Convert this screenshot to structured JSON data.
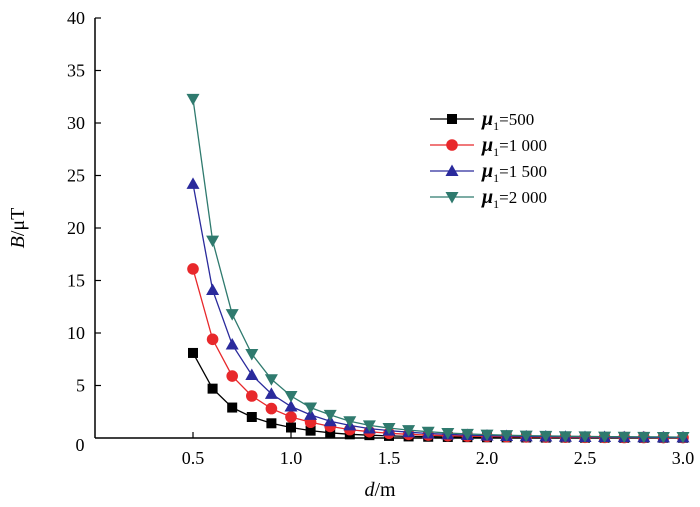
{
  "chart_data": {
    "type": "line",
    "xlabel_var": "d",
    "xlabel_unit": "/m",
    "ylabel_var": "B",
    "ylabel_unit": "/μT",
    "xlim": [
      0,
      3.0
    ],
    "ylim": [
      0,
      40
    ],
    "xticks": [
      "0.5",
      "1.0",
      "1.5",
      "2.0",
      "2.5",
      "3.0"
    ],
    "yticks": [
      "0",
      "5",
      "10",
      "15",
      "20",
      "25",
      "30",
      "35",
      "40"
    ],
    "origin_label": "0",
    "grid": false,
    "legend_position": "top-right",
    "x": [
      0.5,
      0.6,
      0.7,
      0.8,
      0.9,
      1.0,
      1.1,
      1.2,
      1.3,
      1.4,
      1.5,
      1.6,
      1.7,
      1.8,
      1.9,
      2.0,
      2.1,
      2.2,
      2.3,
      2.4,
      2.5,
      2.6,
      2.7,
      2.8,
      2.9,
      3.0
    ],
    "series": [
      {
        "symbol": "μ",
        "subscript": "1",
        "value": "=500",
        "color": "#000000",
        "marker": "square",
        "values": [
          8.1,
          4.7,
          2.9,
          2.0,
          1.4,
          1.0,
          0.7,
          0.5,
          0.35,
          0.27,
          0.2,
          0.15,
          0.12,
          0.1,
          0.08,
          0.07,
          0.06,
          0.05,
          0.04,
          0.04,
          0.03,
          0.03,
          0.02,
          0.02,
          0.02,
          0.02
        ]
      },
      {
        "symbol": "μ",
        "subscript": "1",
        "value": "=1 000",
        "color": "#e8282b",
        "marker": "circle",
        "values": [
          16.1,
          9.4,
          5.9,
          4.0,
          2.8,
          2.0,
          1.5,
          1.1,
          0.8,
          0.6,
          0.45,
          0.35,
          0.28,
          0.22,
          0.18,
          0.15,
          0.12,
          0.1,
          0.09,
          0.08,
          0.07,
          0.06,
          0.05,
          0.05,
          0.04,
          0.04
        ]
      },
      {
        "symbol": "μ",
        "subscript": "1",
        "value": "=1 500",
        "color": "#2a2a9c",
        "marker": "triangle-up",
        "values": [
          24.2,
          14.1,
          8.9,
          6.0,
          4.2,
          3.0,
          2.2,
          1.6,
          1.2,
          0.9,
          0.7,
          0.55,
          0.43,
          0.35,
          0.28,
          0.23,
          0.19,
          0.16,
          0.14,
          0.12,
          0.1,
          0.09,
          0.08,
          0.07,
          0.06,
          0.06
        ]
      },
      {
        "symbol": "μ",
        "subscript": "1",
        "value": "=2 000",
        "color": "#2f7a6e",
        "marker": "triangle-down",
        "values": [
          32.3,
          18.8,
          11.8,
          8.0,
          5.6,
          4.0,
          2.9,
          2.2,
          1.6,
          1.2,
          0.95,
          0.75,
          0.6,
          0.48,
          0.39,
          0.32,
          0.27,
          0.23,
          0.2,
          0.17,
          0.15,
          0.13,
          0.12,
          0.11,
          0.1,
          0.09
        ]
      }
    ]
  }
}
